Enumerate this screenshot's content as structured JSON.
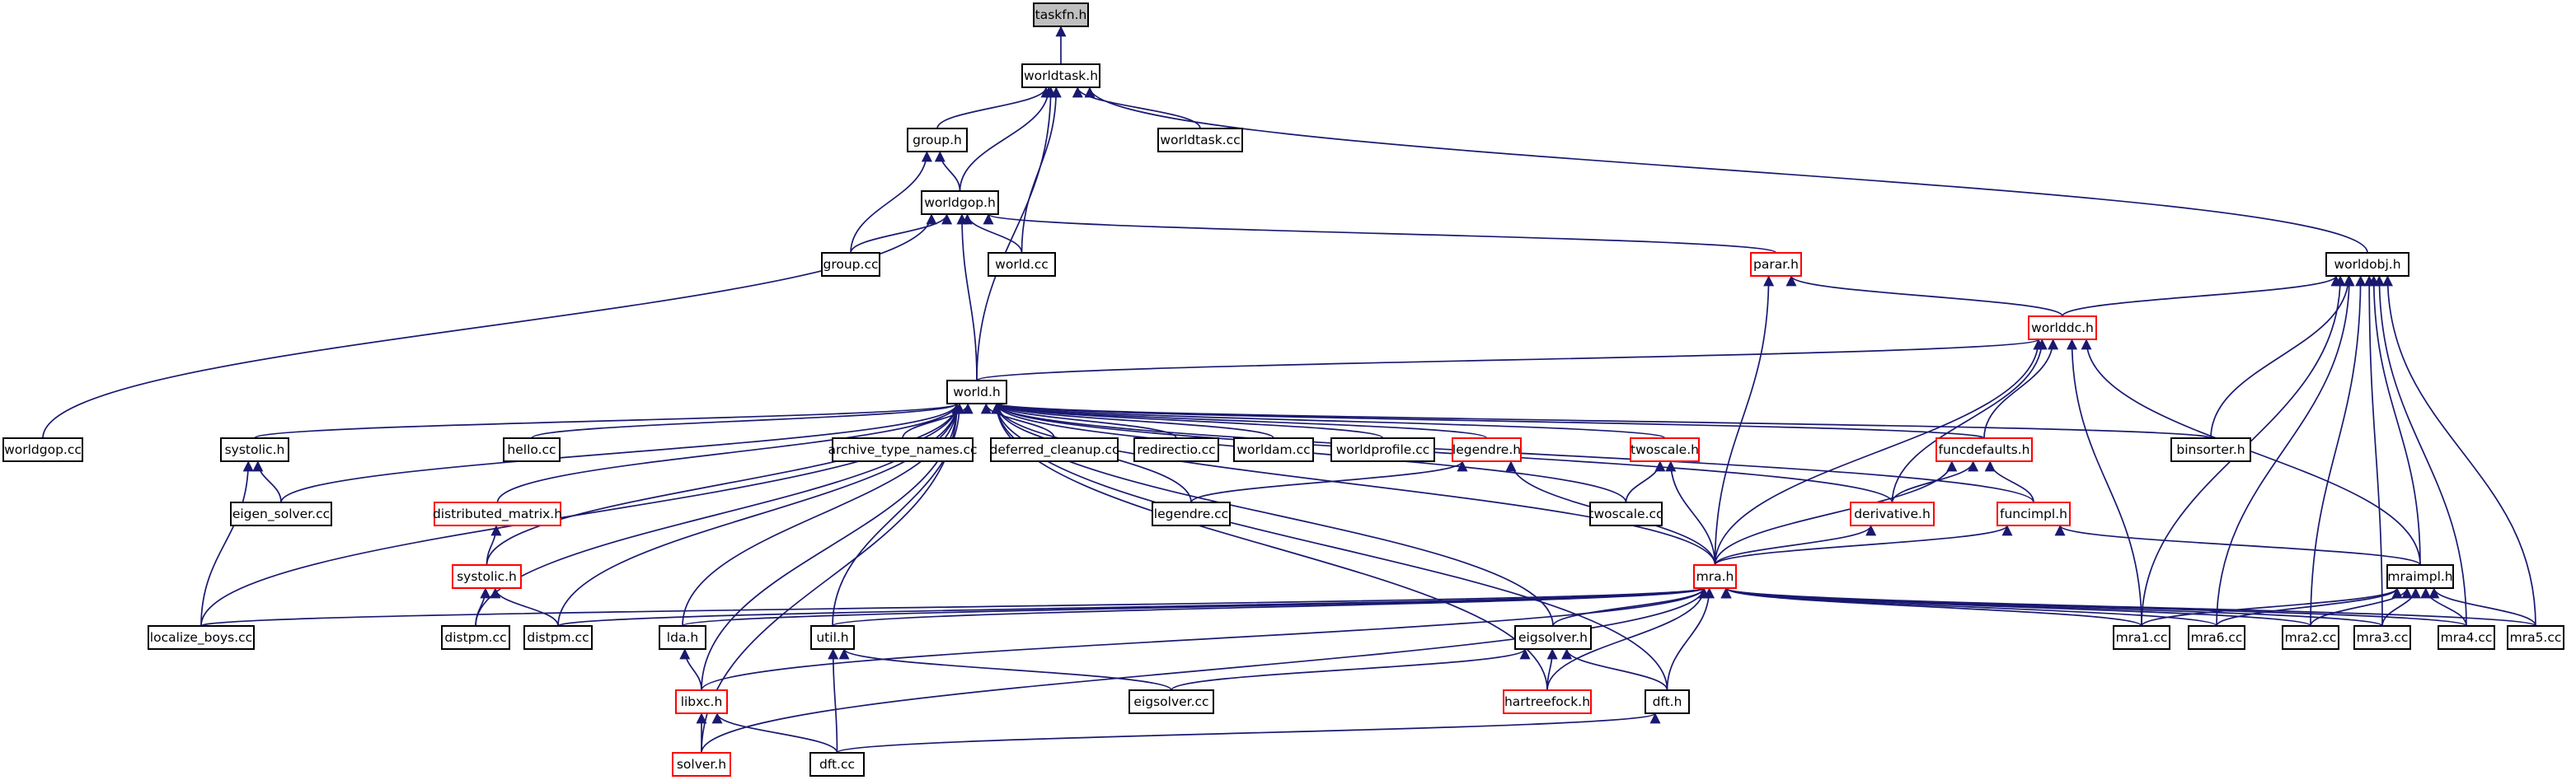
{
  "colors": {
    "edge": "#191970",
    "node_border_normal": "#000000",
    "node_border_external": "#ff0000",
    "node_fill_root": "#bfbfbf",
    "node_fill": "#ffffff"
  },
  "graph": {
    "direction": "arrows point from includer up to included header",
    "nodes": [
      {
        "id": "taskfn_h",
        "label": "taskfn.h",
        "style": "root"
      },
      {
        "id": "worldtask_h",
        "label": "worldtask.h",
        "style": "normal"
      },
      {
        "id": "group_h",
        "label": "group.h",
        "style": "normal"
      },
      {
        "id": "worldtask_cc",
        "label": "worldtask.cc",
        "style": "normal"
      },
      {
        "id": "worldgop_h",
        "label": "worldgop.h",
        "style": "normal"
      },
      {
        "id": "group_cc",
        "label": "group.cc",
        "style": "normal"
      },
      {
        "id": "world_cc",
        "label": "world.cc",
        "style": "normal"
      },
      {
        "id": "parar_h",
        "label": "parar.h",
        "style": "red"
      },
      {
        "id": "worldobj_h",
        "label": "worldobj.h",
        "style": "normal"
      },
      {
        "id": "worlddc_h",
        "label": "worlddc.h",
        "style": "red"
      },
      {
        "id": "world_h",
        "label": "world.h",
        "style": "normal"
      },
      {
        "id": "worldgop_cc",
        "label": "worldgop.cc",
        "style": "normal"
      },
      {
        "id": "systolic_h1",
        "label": "systolic.h",
        "style": "normal"
      },
      {
        "id": "hello_cc",
        "label": "hello.cc",
        "style": "normal"
      },
      {
        "id": "archive_type_names_cc",
        "label": "archive_type_names.cc",
        "style": "normal"
      },
      {
        "id": "deferred_cleanup_cc",
        "label": "deferred_cleanup.cc",
        "style": "normal"
      },
      {
        "id": "redirectio_cc",
        "label": "redirectio.cc",
        "style": "normal"
      },
      {
        "id": "worldam_cc",
        "label": "worldam.cc",
        "style": "normal"
      },
      {
        "id": "worldprofile_cc",
        "label": "worldprofile.cc",
        "style": "normal"
      },
      {
        "id": "legendre_h",
        "label": "legendre.h",
        "style": "red"
      },
      {
        "id": "twoscale_h",
        "label": "twoscale.h",
        "style": "red"
      },
      {
        "id": "funcdefaults_h",
        "label": "funcdefaults.h",
        "style": "red"
      },
      {
        "id": "binsorter_h",
        "label": "binsorter.h",
        "style": "normal"
      },
      {
        "id": "eigen_solver_cc",
        "label": "eigen_solver.cc",
        "style": "normal"
      },
      {
        "id": "distributed_matrix_h",
        "label": "distributed_matrix.h",
        "style": "red"
      },
      {
        "id": "legendre_cc",
        "label": "legendre.cc",
        "style": "normal"
      },
      {
        "id": "twoscale_cc",
        "label": "twoscale.cc",
        "style": "normal"
      },
      {
        "id": "derivative_h",
        "label": "derivative.h",
        "style": "red"
      },
      {
        "id": "funcimpl_h",
        "label": "funcimpl.h",
        "style": "red"
      },
      {
        "id": "systolic_h2",
        "label": "systolic.h",
        "style": "red"
      },
      {
        "id": "mra_h",
        "label": "mra.h",
        "style": "red"
      },
      {
        "id": "mraimpl_h",
        "label": "mraimpl.h",
        "style": "normal"
      },
      {
        "id": "localize_boys_cc",
        "label": "localize_boys.cc",
        "style": "normal"
      },
      {
        "id": "distpm_cc1",
        "label": "distpm.cc",
        "style": "normal"
      },
      {
        "id": "distpm_cc2",
        "label": "distpm.cc",
        "style": "normal"
      },
      {
        "id": "lda_h",
        "label": "lda.h",
        "style": "normal"
      },
      {
        "id": "util_h",
        "label": "util.h",
        "style": "normal"
      },
      {
        "id": "eigsolver_h",
        "label": "eigsolver.h",
        "style": "normal"
      },
      {
        "id": "mra1_cc",
        "label": "mra1.cc",
        "style": "normal"
      },
      {
        "id": "mra6_cc",
        "label": "mra6.cc",
        "style": "normal"
      },
      {
        "id": "mra2_cc",
        "label": "mra2.cc",
        "style": "normal"
      },
      {
        "id": "mra3_cc",
        "label": "mra3.cc",
        "style": "normal"
      },
      {
        "id": "mra4_cc",
        "label": "mra4.cc",
        "style": "normal"
      },
      {
        "id": "mra5_cc",
        "label": "mra5.cc",
        "style": "normal"
      },
      {
        "id": "libxc_h",
        "label": "libxc.h",
        "style": "red"
      },
      {
        "id": "eigsolver_cc",
        "label": "eigsolver.cc",
        "style": "normal"
      },
      {
        "id": "hartreefock_h",
        "label": "hartreefock.h",
        "style": "red"
      },
      {
        "id": "dft_h",
        "label": "dft.h",
        "style": "normal"
      },
      {
        "id": "solver_h",
        "label": "solver.h",
        "style": "red"
      },
      {
        "id": "dft_cc",
        "label": "dft.cc",
        "style": "normal"
      }
    ],
    "edges": [
      [
        "worldtask_h",
        "taskfn_h"
      ],
      [
        "group_h",
        "worldtask_h"
      ],
      [
        "worldtask_cc",
        "worldtask_h"
      ],
      [
        "worldgop_h",
        "worldtask_h"
      ],
      [
        "world_cc",
        "worldtask_h"
      ],
      [
        "world_h",
        "worldtask_h"
      ],
      [
        "worldobj_h",
        "worldtask_h"
      ],
      [
        "worldgop_h",
        "group_h"
      ],
      [
        "group_cc",
        "group_h"
      ],
      [
        "group_cc",
        "worldgop_h"
      ],
      [
        "world_cc",
        "worldgop_h"
      ],
      [
        "parar_h",
        "worldgop_h"
      ],
      [
        "world_h",
        "worldgop_h"
      ],
      [
        "worldgop_cc",
        "worldgop_h"
      ],
      [
        "worlddc_h",
        "parar_h"
      ],
      [
        "mra_h",
        "parar_h"
      ],
      [
        "worlddc_h",
        "worldobj_h"
      ],
      [
        "binsorter_h",
        "worldobj_h"
      ],
      [
        "mraimpl_h",
        "worldobj_h"
      ],
      [
        "mra1_cc",
        "worldobj_h"
      ],
      [
        "mra6_cc",
        "worldobj_h"
      ],
      [
        "mra2_cc",
        "worldobj_h"
      ],
      [
        "mra3_cc",
        "worldobj_h"
      ],
      [
        "mra4_cc",
        "worldobj_h"
      ],
      [
        "mra5_cc",
        "worldobj_h"
      ],
      [
        "world_h",
        "worlddc_h"
      ],
      [
        "funcdefaults_h",
        "worlddc_h"
      ],
      [
        "derivative_h",
        "worlddc_h"
      ],
      [
        "mra_h",
        "worlddc_h"
      ],
      [
        "mraimpl_h",
        "worlddc_h"
      ],
      [
        "mra1_cc",
        "worlddc_h"
      ],
      [
        "systolic_h1",
        "world_h"
      ],
      [
        "hello_cc",
        "world_h"
      ],
      [
        "archive_type_names_cc",
        "world_h"
      ],
      [
        "deferred_cleanup_cc",
        "world_h"
      ],
      [
        "redirectio_cc",
        "world_h"
      ],
      [
        "worldam_cc",
        "world_h"
      ],
      [
        "worldprofile_cc",
        "world_h"
      ],
      [
        "legendre_h",
        "world_h"
      ],
      [
        "twoscale_h",
        "world_h"
      ],
      [
        "funcdefaults_h",
        "world_h"
      ],
      [
        "binsorter_h",
        "world_h"
      ],
      [
        "eigen_solver_cc",
        "world_h"
      ],
      [
        "distributed_matrix_h",
        "world_h"
      ],
      [
        "legendre_cc",
        "world_h"
      ],
      [
        "twoscale_cc",
        "world_h"
      ],
      [
        "derivative_h",
        "world_h"
      ],
      [
        "funcimpl_h",
        "world_h"
      ],
      [
        "systolic_h2",
        "world_h"
      ],
      [
        "mra_h",
        "world_h"
      ],
      [
        "localize_boys_cc",
        "world_h"
      ],
      [
        "distpm_cc1",
        "world_h"
      ],
      [
        "distpm_cc2",
        "world_h"
      ],
      [
        "lda_h",
        "world_h"
      ],
      [
        "util_h",
        "world_h"
      ],
      [
        "eigsolver_h",
        "world_h"
      ],
      [
        "libxc_h",
        "world_h"
      ],
      [
        "hartreefock_h",
        "world_h"
      ],
      [
        "dft_h",
        "world_h"
      ],
      [
        "solver_h",
        "world_h"
      ],
      [
        "eigen_solver_cc",
        "systolic_h1"
      ],
      [
        "localize_boys_cc",
        "systolic_h1"
      ],
      [
        "legendre_cc",
        "legendre_h"
      ],
      [
        "mra_h",
        "legendre_h"
      ],
      [
        "twoscale_cc",
        "twoscale_h"
      ],
      [
        "mra_h",
        "twoscale_h"
      ],
      [
        "derivative_h",
        "funcdefaults_h"
      ],
      [
        "funcimpl_h",
        "funcdefaults_h"
      ],
      [
        "mra_h",
        "funcdefaults_h"
      ],
      [
        "systolic_h2",
        "distributed_matrix_h"
      ],
      [
        "mra_h",
        "derivative_h"
      ],
      [
        "mra_h",
        "funcimpl_h"
      ],
      [
        "mraimpl_h",
        "funcimpl_h"
      ],
      [
        "distpm_cc1",
        "systolic_h2"
      ],
      [
        "distpm_cc2",
        "systolic_h2"
      ],
      [
        "localize_boys_cc",
        "mra_h"
      ],
      [
        "distpm_cc2",
        "mra_h"
      ],
      [
        "lda_h",
        "mra_h"
      ],
      [
        "util_h",
        "mra_h"
      ],
      [
        "eigsolver_h",
        "mra_h"
      ],
      [
        "libxc_h",
        "mra_h"
      ],
      [
        "hartreefock_h",
        "mra_h"
      ],
      [
        "dft_h",
        "mra_h"
      ],
      [
        "solver_h",
        "mra_h"
      ],
      [
        "mra1_cc",
        "mra_h"
      ],
      [
        "mra6_cc",
        "mra_h"
      ],
      [
        "mra2_cc",
        "mra_h"
      ],
      [
        "mra3_cc",
        "mra_h"
      ],
      [
        "mra4_cc",
        "mra_h"
      ],
      [
        "mra5_cc",
        "mra_h"
      ],
      [
        "mra1_cc",
        "mraimpl_h"
      ],
      [
        "mra6_cc",
        "mraimpl_h"
      ],
      [
        "mra2_cc",
        "mraimpl_h"
      ],
      [
        "mra3_cc",
        "mraimpl_h"
      ],
      [
        "mra4_cc",
        "mraimpl_h"
      ],
      [
        "mra5_cc",
        "mraimpl_h"
      ],
      [
        "libxc_h",
        "lda_h"
      ],
      [
        "eigsolver_cc",
        "util_h"
      ],
      [
        "dft_cc",
        "util_h"
      ],
      [
        "eigsolver_cc",
        "eigsolver_h"
      ],
      [
        "hartreefock_h",
        "eigsolver_h"
      ],
      [
        "dft_h",
        "eigsolver_h"
      ],
      [
        "solver_h",
        "libxc_h"
      ],
      [
        "dft_cc",
        "libxc_h"
      ],
      [
        "dft_cc",
        "dft_h"
      ]
    ]
  }
}
